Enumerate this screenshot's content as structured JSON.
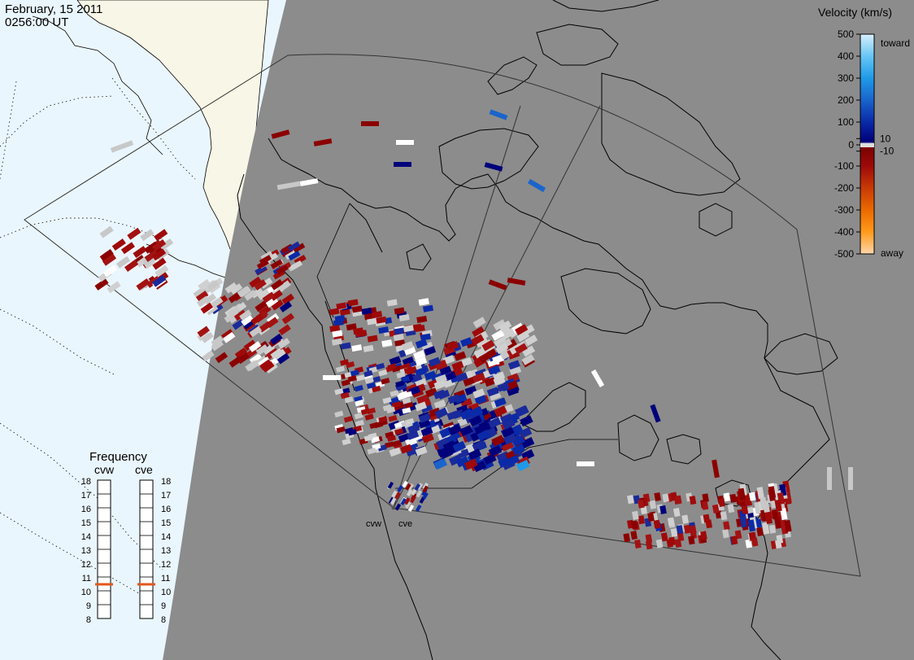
{
  "header": {
    "date": "February, 15 2011",
    "time": "0256:00 UT"
  },
  "colors": {
    "ocean_day": "#eaf6fd",
    "land_day": "#f8f6e6",
    "night_gray": "#8c8c8c",
    "ground_scatter": "#c8c8c8",
    "line": "#000000"
  },
  "colorbar": {
    "title": "Velocity (km/s)",
    "ticks": [
      "500",
      "400",
      "300",
      "200",
      "100",
      "10",
      "0",
      "-10",
      "-100",
      "-200",
      "-300",
      "-400",
      "-500"
    ],
    "top_label": "toward",
    "bottom_label": "away",
    "stops": [
      {
        "v": 500,
        "c": "#d8f0fc"
      },
      {
        "v": 400,
        "c": "#68c6f5"
      },
      {
        "v": 300,
        "c": "#1e9ae8"
      },
      {
        "v": 200,
        "c": "#1a64cc"
      },
      {
        "v": 100,
        "c": "#0a2aa8"
      },
      {
        "v": 10,
        "c": "#00007a"
      },
      {
        "v": 0,
        "c": "#dddddd"
      },
      {
        "v": -10,
        "c": "#7a0000"
      },
      {
        "v": -100,
        "c": "#9e0a0a"
      },
      {
        "v": -200,
        "c": "#c83a05"
      },
      {
        "v": -300,
        "c": "#ea6a00"
      },
      {
        "v": -400,
        "c": "#ff9a1a"
      },
      {
        "v": -500,
        "c": "#ffd7ac"
      }
    ]
  },
  "frequency": {
    "title": "Frequency",
    "scale": [
      "18",
      "17",
      "16",
      "15",
      "14",
      "13",
      "12",
      "11",
      "10",
      "9",
      "8"
    ],
    "channels": [
      {
        "name": "cvw",
        "mhz": 11
      },
      {
        "name": "cve",
        "mhz": 11
      }
    ],
    "marker_color": "#e2571d"
  },
  "radars": [
    {
      "name": "cvw"
    },
    {
      "name": "cve"
    }
  ]
}
